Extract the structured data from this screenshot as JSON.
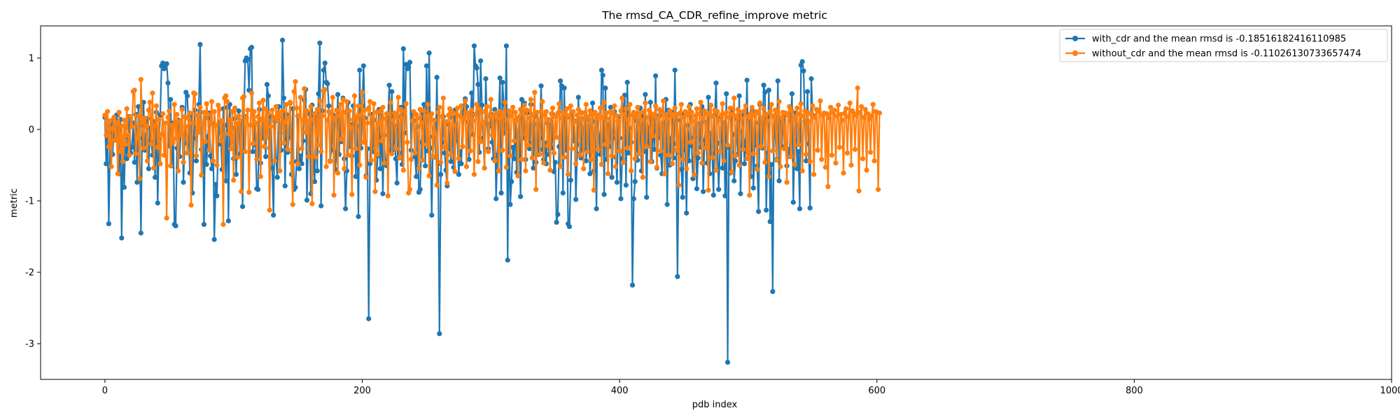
{
  "chart_data": {
    "type": "line",
    "title": "The rmsd_CA_CDR_refine_improve metric",
    "xlabel": "pdb index",
    "ylabel": "metric",
    "xlim": [
      -50,
      1000
    ],
    "ylim": [
      -3.5,
      1.45
    ],
    "xticks": [
      0,
      200,
      400,
      600,
      800,
      1000
    ],
    "yticks": [
      -3,
      -2,
      -1,
      0,
      1
    ],
    "grid": false,
    "legend_position": "top-right",
    "n_points": 967,
    "series": [
      {
        "name": "with_cdr and the mean rmsd is -0.18516182416110985",
        "color": "#1f77b4",
        "marker": "circle",
        "values": [
          0.17,
          -0.48,
          0.05,
          -1.32,
          -0.21,
          0.12,
          -0.35,
          0.08,
          -0.15,
          0.2,
          -0.05,
          -0.62,
          0.14,
          -1.52,
          -0.22,
          -0.81,
          0.03,
          -0.41,
          -0.11,
          0.18,
          -0.33,
          -0.25,
          0.09,
          -0.46,
          0.21,
          -0.74,
          0.32,
          -0.12,
          -1.45,
          0.06,
          0.38,
          -0.29,
          -0.08,
          0.15,
          -0.55,
          0.02,
          -0.18,
          -0.36,
          0.11,
          -0.67,
          0.24,
          -1.03,
          -0.14,
          0.2,
          0.89,
          0.93,
          0.85,
          0.9,
          0.92,
          0.65,
          -0.23,
          0.42,
          -0.51,
          0.09,
          -1.33,
          -1.35,
          -0.26,
          0.13,
          -0.38,
          -0.06,
          0.31,
          -0.74,
          -0.19,
          0.52,
          0.47,
          0.04,
          -0.61,
          0.19,
          -0.89,
          -0.12,
          0.27,
          -0.44,
          -0.03,
          0.35,
          1.19,
          -0.28,
          0.07,
          -1.33,
          0.16,
          -0.49,
          -0.1,
          0.23,
          -0.37,
          -0.55,
          0.08,
          -1.54,
          -0.77,
          -0.93,
          -0.21,
          0.1,
          -0.04,
          -0.56,
          0.29,
          0.06,
          -0.72,
          0.31,
          -1.28,
          0.35,
          -0.17,
          0.02,
          -0.41,
          0.15,
          -0.63,
          -0.09,
          0.26,
          -0.34,
          0.12,
          -1.08,
          0.19,
          0.96,
          1.0,
          0.98,
          0.55,
          1.13,
          1.15,
          -0.31,
          0.05,
          -0.22,
          -0.83,
          -0.84,
          0.28,
          -0.47,
          0.14,
          -0.12,
          0.09,
          -0.38,
          0.63,
          0.47,
          -0.26,
          0.18,
          -0.54,
          -1.2,
          0.11,
          -0.42,
          -0.67,
          0.32,
          -0.05,
          -0.29,
          1.25,
          0.44,
          -0.79,
          0.21,
          -0.32,
          -0.11,
          0.37,
          -0.63,
          0.29,
          -0.84,
          -0.81,
          -0.45,
          0.19,
          -0.55,
          -0.37,
          -0.48,
          -0.16,
          0.41,
          0.56,
          -0.99,
          -0.16,
          0.22,
          -0.9,
          0.34,
          -0.42,
          -0.73,
          0.16,
          -0.58,
          0.5,
          1.21,
          -1.07,
          0.26,
          0.83,
          0.93,
          0.66,
          0.64,
          0.33,
          -0.44,
          -0.29,
          0.21,
          0.06,
          -0.56,
          -0.32,
          0.49,
          -0.35,
          0.16,
          -0.17,
          0.44,
          -0.41,
          -1.11,
          -0.58,
          0.38,
          -0.24,
          0.07,
          -0.37,
          0.33,
          0.12,
          -0.66,
          0.05,
          -1.22,
          0.83,
          -0.26,
          0.33,
          0.89,
          0.16,
          -0.65,
          -0.27,
          -2.65,
          -0.48,
          0.21,
          -0.31,
          0.13,
          -0.22,
          -0.71,
          -0.37,
          0.28,
          -0.55,
          0.19,
          -0.9,
          -0.08,
          -0.47,
          -0.51,
          0.15,
          0.62,
          -0.29,
          0.53,
          -0.28,
          0.05,
          -0.41,
          -0.75,
          0.18,
          -0.33,
          0.31,
          -0.49,
          1.13,
          -0.05,
          0.91,
          0.85,
          0.87,
          0.94,
          -0.29,
          0.21,
          0.12,
          -0.38,
          -0.66,
          0.04,
          -0.88,
          -0.84,
          -0.18,
          0.22,
          0.35,
          -0.51,
          0.89,
          -0.3,
          1.07,
          -0.26,
          -1.2,
          -0.1,
          0.13,
          -0.39,
          0.73,
          -0.48,
          -2.86,
          -0.63,
          -0.18,
          0.18,
          -0.33,
          -0.57,
          -0.79,
          0.07,
          -0.27,
          -0.45,
          0.17,
          -0.53,
          0.27,
          0.08,
          -0.16,
          -0.63,
          -0.31,
          -0.48,
          0.23,
          0.33,
          0.43,
          0.32,
          0.1,
          -0.42,
          0.12,
          0.51,
          -0.07,
          1.17,
          0.89,
          0.86,
          0.63,
          -0.32,
          0.96,
          0.34,
          -0.12,
          -0.54,
          0.71,
          0.08,
          -0.27,
          0.05,
          0.22,
          -0.18,
          -0.41,
          0.28,
          -0.97,
          -0.36,
          0.12,
          0.72,
          -0.89,
          0.66,
          0.35,
          -0.05,
          1.17,
          -1.83,
          0.19,
          -1.05,
          -0.73,
          -0.25,
          -0.41,
          0.12,
          -0.6,
          -0.16,
          0.17,
          -0.94,
          0.42,
          -0.12,
          0.37,
          -0.42,
          0.23,
          -0.09,
          -0.27,
          0.35,
          -0.19,
          -0.54,
          0.18,
          -0.46,
          0.07,
          -0.35,
          -0.12,
          0.61,
          -0.28,
          -0.42,
          -0.19,
          -0.48,
          0.09,
          -0.35,
          0.06,
          -0.26,
          0.21,
          -0.59,
          -0.46,
          -1.3,
          -1.19,
          -0.24,
          0.68,
          0.61,
          -0.89,
          0.58,
          -0.29,
          0.17,
          -1.32,
          -1.36,
          -0.71,
          0.24,
          -0.16,
          0.12,
          -0.98,
          -0.34,
          0.45,
          -0.21,
          -0.4,
          0.15,
          -0.28,
          0.23,
          -0.44,
          -0.06,
          0.14,
          -0.62,
          -0.3,
          0.37,
          -0.58,
          0.11,
          -1.11,
          0.19,
          -0.08,
          -0.35,
          0.83,
          0.76,
          -0.91,
          0.58,
          -0.42,
          0.07,
          -0.24,
          0.31,
          -0.67,
          -0.12,
          0.25,
          -0.39,
          -0.74,
          0.18,
          -0.12,
          -0.97,
          -0.41,
          0.29,
          0.48,
          -0.78,
          0.66,
          -0.33,
          0.02,
          -0.18,
          -2.18,
          -0.97,
          -0.73,
          0.12,
          -0.43,
          -0.07,
          0.3,
          -0.58,
          0.19,
          -0.31,
          0.49,
          -0.95,
          0.03,
          -0.23,
          0.38,
          -0.45,
          0.16,
          -0.28,
          0.75,
          -0.54,
          -0.11,
          0.2,
          -0.36,
          -0.62,
          0.09,
          -0.18,
          0.42,
          -1.05,
          0.27,
          -0.5,
          -0.12,
          0.24,
          -0.4,
          0.83,
          -0.2,
          -2.06,
          -0.33,
          0.13,
          -0.56,
          -0.95,
          0.22,
          -0.29,
          -1.17,
          0.06,
          -0.44,
          0.35,
          -0.23,
          -0.69,
          -0.11,
          0.19,
          -0.83,
          -0.4,
          0.08,
          -0.25,
          0.32,
          -0.87,
          -0.15,
          0.1,
          -0.47,
          0.45,
          -0.62,
          -0.05,
          -0.34,
          -0.92,
          0.21,
          0.65,
          -0.19,
          -0.84,
          -0.31,
          0.18,
          -0.54,
          0.09,
          -0.93,
          0.5,
          -3.26,
          -0.25,
          -0.61,
          0.28,
          -0.07,
          -0.72,
          -0.44,
          0.15,
          -0.35,
          0.47,
          -0.9,
          -0.03,
          0.22,
          -0.48,
          -0.17,
          0.69,
          -0.33,
          0.11,
          -0.66,
          0.26,
          -0.82,
          -0.22,
          0.09,
          -0.51,
          -1.15,
          0.35,
          0.04,
          -0.26,
          0.62,
          0.52,
          -1.13,
          -0.33,
          0.55,
          -1.29,
          -0.49,
          -2.27,
          0.18,
          -0.07,
          -0.42,
          0.68,
          -0.72,
          0.13,
          -0.24,
          0.24,
          0.21,
          -0.18,
          -0.51,
          -0.28,
          -0.38,
          0.12,
          0.5,
          -1.02,
          -0.14,
          0.23,
          -0.55,
          -0.31,
          -1.11,
          0.9,
          0.95,
          0.82,
          0.11,
          -0.44,
          0.53,
          -0.2,
          -1.1,
          0.71,
          0.2
        ]
      },
      {
        "name": "without_cdr and the mean rmsd is -0.11026130733657474",
        "color": "#ff7f0e",
        "marker": "circle",
        "values": [
          0.2,
          -0.08,
          0.25,
          -0.24,
          0.12,
          -0.52,
          0.01,
          0.17,
          -0.15,
          0.09,
          -0.62,
          0.24,
          -0.31,
          0.05,
          -0.45,
          0.13,
          -0.21,
          0.29,
          -0.08,
          -0.36,
          0.18,
          0.04,
          0.53,
          0.55,
          -0.34,
          -0.12,
          0.19,
          -0.69,
          0.7,
          0.1,
          -0.26,
          0.16,
          0.05,
          -0.44,
          0.27,
          0.38,
          -0.2,
          0.51,
          -0.54,
          0.05,
          0.33,
          -0.25,
          0.14,
          -0.48,
          -0.07,
          0.22,
          -0.36,
          0.09,
          -1.24,
          0.17,
          0.26,
          -0.51,
          0.06,
          -0.19,
          0.35,
          -0.13,
          0.21,
          -0.58,
          0.11,
          -0.08,
          0.28,
          -0.46,
          0.18,
          0.04,
          -0.33,
          0.15,
          0.23,
          -1.06,
          0.09,
          0.51,
          0.5,
          -0.37,
          0.2,
          -0.04,
          0.31,
          -0.64,
          0.07,
          0.24,
          -0.17,
          0.36,
          0.21,
          -0.29,
          0.1,
          0.39,
          -0.44,
          0.25,
          0.06,
          -0.5,
          0.34,
          0.28,
          -0.16,
          0.12,
          -1.33,
          0.44,
          0.47,
          0.39,
          -0.06,
          0.14,
          -0.27,
          0.25,
          -0.71,
          0.3,
          0.08,
          -0.39,
          0.19,
          0.13,
          -0.87,
          0.44,
          0.46,
          -0.31,
          0.16,
          0.27,
          -0.88,
          0.06,
          0.51,
          -0.2,
          0.25,
          0.09,
          -0.42,
          0.18,
          0.37,
          -0.66,
          0.13,
          0.41,
          -0.24,
          0.29,
          -0.11,
          0.22,
          -1.13,
          0.04,
          0.27,
          0.17,
          -0.44,
          0.32,
          0.12,
          0.24,
          -0.58,
          0.18,
          0.26,
          -0.19,
          0.11,
          0.35,
          -0.28,
          0.15,
          0.38,
          -0.47,
          -1.05,
          0.53,
          0.67,
          0.3,
          -0.48,
          0.19,
          0.45,
          -0.27,
          0.13,
          0.57,
          -0.04,
          0.26,
          -0.38,
          0.12,
          0.32,
          -1.04,
          0.14,
          0.22,
          -0.39,
          0.28,
          -0.22,
          0.4,
          -0.31,
          0.19,
          0.54,
          0.56,
          -0.52,
          0.13,
          0.25,
          -0.45,
          0.22,
          0.45,
          -0.92,
          0.16,
          0.27,
          -0.61,
          0.2,
          0.35,
          -0.14,
          0.42,
          -0.55,
          0.24,
          0.39,
          -0.36,
          0.26,
          0.03,
          -0.91,
          0.14,
          0.47,
          -0.27,
          0.18,
          0.33,
          -0.5,
          0.2,
          0.52,
          -0.18,
          0.27,
          -0.67,
          0.09,
          0.3,
          0.39,
          -0.43,
          0.17,
          0.36,
          -0.87,
          0.24,
          -0.35,
          0.08,
          0.26,
          -0.16,
          0.31,
          -0.47,
          0.15,
          0.22,
          -0.93,
          0.21,
          0.38,
          -0.34,
          0.13,
          0.23,
          -0.27,
          0.17,
          0.45,
          -0.4,
          0.28,
          0.16,
          -0.57,
          0.25,
          0.36,
          -0.18,
          -0.89,
          -0.84,
          -0.42,
          0.12,
          0.25,
          -0.33,
          0.21,
          0.16,
          -0.55,
          0.28,
          0.09,
          -0.43,
          0.26,
          0.19,
          -0.21,
          0.35,
          -0.65,
          0.18,
          0.22,
          -0.38,
          0.13,
          -0.07,
          -0.78,
          0.24,
          0.31,
          -0.46,
          0.18,
          0.44,
          -0.25,
          0.11,
          -0.75,
          0.2,
          0.29,
          -0.36,
          0.24,
          0.06,
          -0.59,
          0.22,
          0.3,
          -0.41,
          0.19,
          0.33,
          -0.24,
          0.15,
          0.4,
          -0.52,
          0.23,
          0.16,
          -0.3,
          0.27,
          0.12,
          -0.63,
          0.21,
          0.35,
          -0.45,
          0.29,
          -0.17,
          0.24,
          0.1,
          -0.54,
          0.26,
          0.32,
          -0.31,
          0.18,
          0.42,
          -0.08,
          0.19,
          -0.44,
          0.23,
          0.15,
          -0.58,
          0.25,
          0.17,
          -0.29,
          0.21,
          0.38,
          -0.53,
          0.14,
          0.26,
          -0.37,
          0.2,
          0.31,
          -0.16,
          0.24,
          0.12,
          -0.65,
          0.18,
          0.28,
          -0.42,
          0.22,
          0.34,
          -0.58,
          0.27,
          -0.22,
          0.16,
          0.42,
          -0.4,
          0.21,
          0.52,
          -0.84,
          0.24,
          0.13,
          -0.35,
          0.25,
          0.39,
          -0.47,
          0.2,
          0.25,
          -0.23,
          0.14,
          -0.57,
          0.22,
          0.3,
          -0.33,
          0.18,
          -0.11,
          0.23,
          0.36,
          -0.52,
          0.16,
          0.24,
          -0.39,
          0.21,
          0.29,
          -0.63,
          0.19,
          0.33,
          -0.27,
          0.25,
          0.11,
          -0.48,
          0.2,
          0.28,
          -0.36,
          0.24,
          0.14,
          -0.55,
          0.22,
          0.35,
          -0.31,
          0.18,
          0.26,
          -0.42,
          0.21,
          -0.85,
          0.24,
          0.16,
          -0.28,
          0.2,
          0.3,
          -0.49,
          0.17,
          0.38,
          -0.21,
          0.23,
          -0.62,
          0.15,
          0.25,
          -0.37,
          0.22,
          0.33,
          -0.52,
          0.19,
          0.12,
          -0.3,
          0.26,
          0.44,
          -0.46,
          0.21,
          0.29,
          -0.26,
          0.14,
          0.35,
          -0.58,
          0.2,
          0.24,
          -0.41,
          0.18,
          0.31,
          -0.34,
          0.23,
          0.13,
          -0.67,
          0.25,
          0.37,
          -0.24,
          0.17,
          0.27,
          -0.45,
          0.22,
          -0.09,
          0.19,
          0.33,
          -0.53,
          0.16,
          0.28,
          -0.3,
          0.24,
          0.4,
          -0.62,
          0.2,
          0.15,
          -0.36,
          0.26,
          0.22,
          -0.48,
          0.18,
          0.3,
          -0.29,
          0.21,
          -0.78,
          0.23,
          0.35,
          -0.42,
          0.17,
          0.25,
          -0.55,
          0.2,
          0.32,
          -0.18,
          0.24,
          0.12,
          -0.64,
          0.19,
          0.29,
          -0.33,
          0.22,
          0.38,
          -0.47,
          0.16,
          0.26,
          -0.26,
          0.21,
          -0.85,
          0.23,
          0.34,
          -0.39,
          0.18,
          0.27,
          -0.57,
          0.25,
          0.13,
          -0.31,
          0.2,
          0.36,
          -0.44,
          0.22,
          0.24,
          -0.22,
          0.17,
          0.3,
          -0.6,
          0.21,
          0.44,
          -0.37,
          0.19,
          0.28,
          -0.5,
          0.24,
          0.15,
          -0.28,
          0.26,
          0.33,
          -0.41,
          0.18,
          -0.92,
          0.22,
          0.31,
          -0.34,
          0.2,
          0.25,
          -0.56,
          0.23,
          0.37,
          -0.24,
          0.16,
          0.29,
          -0.46,
          0.21,
          0.12,
          -0.66,
          0.25,
          0.35,
          -0.3,
          0.19,
          0.27,
          -0.43,
          0.22,
          0.39,
          -0.52,
          0.17,
          0.24,
          -0.27,
          0.23,
          -0.74,
          0.2,
          0.32,
          -0.38,
          0.26,
          0.14,
          -0.49,
          0.18,
          0.3,
          -0.21,
          0.22,
          0.36,
          -0.58,
          0.19,
          0.26,
          -0.35,
          0.24,
          0.11,
          -0.45,
          0.21,
          0.33,
          -0.63,
          0.17,
          0.28,
          -0.29,
          0.25,
          0.4,
          -0.42,
          0.2,
          0.23,
          -0.53,
          0.22,
          -0.8,
          0.16,
          0.31,
          -0.36,
          0.24,
          0.27,
          -0.47,
          0.19,
          0.34,
          -0.25,
          0.21,
          0.13,
          -0.61,
          0.23,
          0.29,
          -0.33,
          0.18,
          0.37,
          -0.5,
          0.26,
          0.22,
          -0.28,
          0.2,
          0.58,
          -0.86,
          0.24,
          0.32,
          -0.41,
          0.17,
          0.28,
          -0.57,
          0.22,
          0.15,
          -0.32,
          0.19,
          0.35,
          -0.44,
          0.25,
          0.24,
          -0.84,
          0.23
        ]
      }
    ]
  }
}
